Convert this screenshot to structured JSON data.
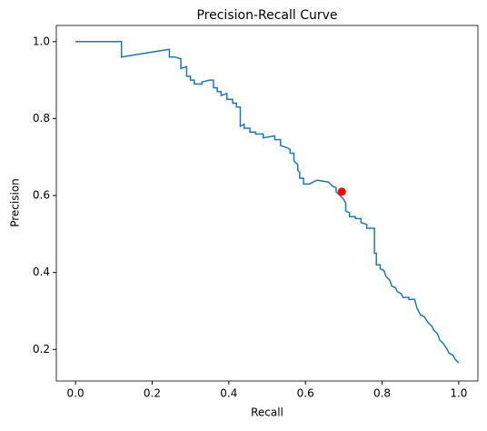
{
  "chart_data": {
    "type": "line",
    "title": "Precision-Recall Curve",
    "x_label": "Recall",
    "y_label": "Precision",
    "xlim": [
      -0.05,
      1.05
    ],
    "ylim": [
      0.118,
      1.042
    ],
    "xticks": [
      {
        "value": 0,
        "label": "0.0"
      },
      0.2,
      0.4,
      0.6,
      0.8,
      {
        "value": 1,
        "label": "1.0"
      }
    ],
    "yticks": [
      0.2,
      0.4,
      0.6,
      0.8,
      {
        "value": 1,
        "label": "1.0"
      }
    ],
    "grid": false,
    "series": [
      {
        "kind": "line",
        "color": "#1f77b4",
        "x": [
          0,
          0.12,
          0.12,
          0.15,
          0.2,
          0.245,
          0.245,
          0.26,
          0.275,
          0.275,
          0.29,
          0.29,
          0.3,
          0.3,
          0.31,
          0.31,
          0.33,
          0.33,
          0.35,
          0.36,
          0.36,
          0.37,
          0.37,
          0.38,
          0.38,
          0.395,
          0.395,
          0.41,
          0.41,
          0.42,
          0.42,
          0.43,
          0.43,
          0.44,
          0.44,
          0.455,
          0.455,
          0.47,
          0.47,
          0.49,
          0.49,
          0.52,
          0.52,
          0.535,
          0.535,
          0.55,
          0.56,
          0.56,
          0.57,
          0.57,
          0.58,
          0.58,
          0.585,
          0.585,
          0.595,
          0.595,
          0.61,
          0.63,
          0.66,
          0.67,
          0.68,
          0.68,
          0.69,
          0.7,
          0.705,
          0.705,
          0.715,
          0.715,
          0.73,
          0.73,
          0.745,
          0.745,
          0.76,
          0.76,
          0.78,
          0.78,
          0.785,
          0.785,
          0.795,
          0.795,
          0.805,
          0.81,
          0.82,
          0.825,
          0.835,
          0.84,
          0.85,
          0.855,
          0.87,
          0.87,
          0.885,
          0.89,
          0.895,
          0.9,
          0.91,
          0.92,
          0.93,
          0.935,
          0.945,
          0.95,
          0.96,
          0.97,
          0.975,
          0.985,
          0.99,
          1.0
        ],
        "values": [
          1.0,
          1.0,
          0.96,
          0.965,
          0.973,
          0.98,
          0.96,
          0.96,
          0.955,
          0.93,
          0.935,
          0.91,
          0.91,
          0.9,
          0.9,
          0.89,
          0.89,
          0.895,
          0.9,
          0.9,
          0.88,
          0.88,
          0.87,
          0.87,
          0.86,
          0.865,
          0.85,
          0.85,
          0.84,
          0.84,
          0.83,
          0.83,
          0.78,
          0.785,
          0.775,
          0.775,
          0.765,
          0.765,
          0.76,
          0.76,
          0.75,
          0.755,
          0.745,
          0.745,
          0.73,
          0.725,
          0.72,
          0.71,
          0.71,
          0.69,
          0.68,
          0.665,
          0.66,
          0.645,
          0.645,
          0.63,
          0.63,
          0.64,
          0.635,
          0.625,
          0.62,
          0.61,
          0.6,
          0.59,
          0.58,
          0.56,
          0.555,
          0.545,
          0.545,
          0.54,
          0.54,
          0.53,
          0.525,
          0.515,
          0.515,
          0.45,
          0.45,
          0.42,
          0.42,
          0.41,
          0.405,
          0.39,
          0.38,
          0.365,
          0.36,
          0.35,
          0.345,
          0.335,
          0.335,
          0.33,
          0.33,
          0.31,
          0.3,
          0.29,
          0.285,
          0.27,
          0.26,
          0.25,
          0.24,
          0.225,
          0.215,
          0.2,
          0.19,
          0.185,
          0.175,
          0.165
        ]
      },
      {
        "kind": "point",
        "color": "#ff0000",
        "x": [
          0.695
        ],
        "values": [
          0.61
        ]
      }
    ]
  }
}
